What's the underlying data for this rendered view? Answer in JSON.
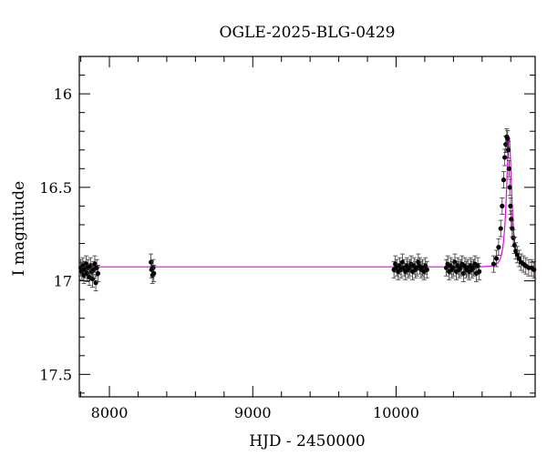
{
  "chart_data": {
    "type": "scatter",
    "title": "OGLE-2025-BLG-0429",
    "xlabel": "HJD - 2450000",
    "ylabel": "I magnitude",
    "xlim": [
      7790,
      10970
    ],
    "ylim": [
      17.62,
      15.8
    ],
    "y_inverted": true,
    "xticks": [
      8000,
      9000,
      10000
    ],
    "yticks": [
      16,
      16.5,
      17,
      17.5
    ],
    "xtick_labels": [
      "8000",
      "9000",
      "10000"
    ],
    "ytick_labels": [
      "16",
      "16.5",
      "17",
      "17.5"
    ],
    "grid": false,
    "legend": "none",
    "colors": {
      "points": "#000000",
      "model": "#ee00ee"
    },
    "series": [
      {
        "kind": "model-curve",
        "baseline_mag": 16.925,
        "peak_time": 10788,
        "peak_mag": 16.23,
        "timescale_days": 28
      },
      {
        "kind": "observations",
        "x": [
          7800,
          7808,
          7815,
          7822,
          7830,
          7838,
          7845,
          7852,
          7860,
          7868,
          7875,
          7882,
          7890,
          7898,
          7905,
          7912,
          7920,
          8290,
          8295,
          8300,
          8305,
          8310,
          9985,
          9995,
          10005,
          10015,
          10025,
          10035,
          10045,
          10055,
          10065,
          10075,
          10085,
          10095,
          10105,
          10115,
          10125,
          10135,
          10145,
          10155,
          10165,
          10175,
          10185,
          10195,
          10205,
          10215,
          10350,
          10360,
          10370,
          10380,
          10390,
          10400,
          10410,
          10420,
          10430,
          10440,
          10450,
          10460,
          10470,
          10480,
          10490,
          10500,
          10510,
          10520,
          10530,
          10540,
          10550,
          10560,
          10570,
          10580,
          10680,
          10700,
          10715,
          10730,
          10740,
          10750,
          10758,
          10765,
          10772,
          10778,
          10783,
          10788,
          10793,
          10798,
          10803,
          10810,
          10818,
          10826,
          10835,
          10845,
          10858,
          10872,
          10888,
          10905,
          10925,
          10945,
          10962
        ],
        "y": [
          16.93,
          16.95,
          16.92,
          16.97,
          16.94,
          16.91,
          16.96,
          16.93,
          16.98,
          16.92,
          16.95,
          16.99,
          16.94,
          16.91,
          17.01,
          16.93,
          16.96,
          16.9,
          16.94,
          16.97,
          16.93,
          16.96,
          16.94,
          16.91,
          16.93,
          16.95,
          16.92,
          16.94,
          16.9,
          16.93,
          16.95,
          16.92,
          16.94,
          16.93,
          16.91,
          16.95,
          16.92,
          16.94,
          16.93,
          16.9,
          16.92,
          16.94,
          16.93,
          16.95,
          16.92,
          16.94,
          16.93,
          16.91,
          16.95,
          16.92,
          16.94,
          16.93,
          16.9,
          16.95,
          16.92,
          16.94,
          16.93,
          16.91,
          16.96,
          16.92,
          16.94,
          16.93,
          16.95,
          16.92,
          16.94,
          16.93,
          16.91,
          16.96,
          16.92,
          16.95,
          16.91,
          16.88,
          16.82,
          16.72,
          16.6,
          16.46,
          16.34,
          16.27,
          16.23,
          16.24,
          16.3,
          16.4,
          16.5,
          16.6,
          16.67,
          16.72,
          16.77,
          16.81,
          16.84,
          16.86,
          16.88,
          16.9,
          16.91,
          16.92,
          16.93,
          16.93,
          16.94
        ]
      }
    ]
  }
}
